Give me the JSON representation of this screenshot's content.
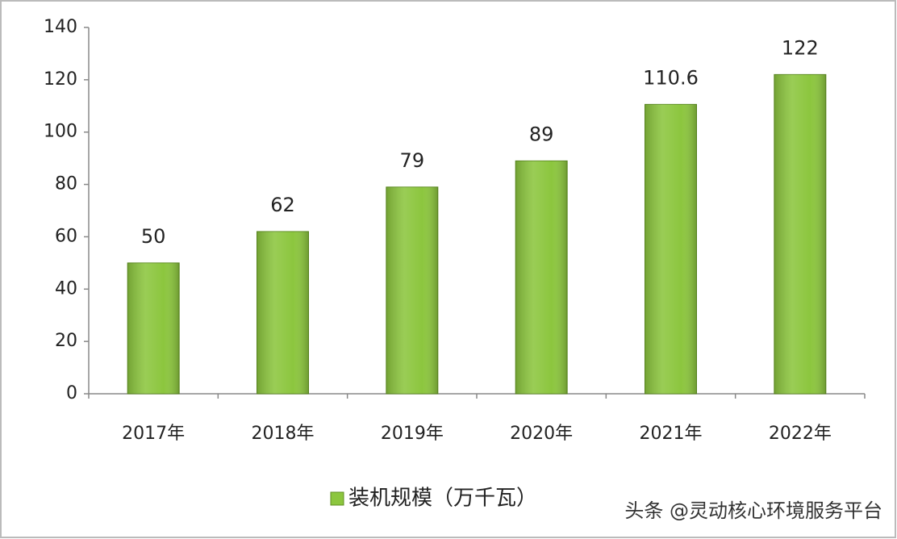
{
  "chart_data": {
    "type": "bar",
    "categories": [
      "2017年",
      "2018年",
      "2019年",
      "2020年",
      "2021年",
      "2022年"
    ],
    "series": [
      {
        "name": "装机规模（万千瓦）",
        "color": "#8cc63e",
        "values": [
          50,
          62,
          79,
          89,
          110.6,
          122
        ]
      }
    ],
    "ylim": [
      0,
      140
    ],
    "yticks": [
      0,
      20,
      40,
      60,
      80,
      100,
      120,
      140
    ],
    "grid": false,
    "legend": "bottom",
    "watermark": "头条 @灵动核心环境服务平台"
  }
}
